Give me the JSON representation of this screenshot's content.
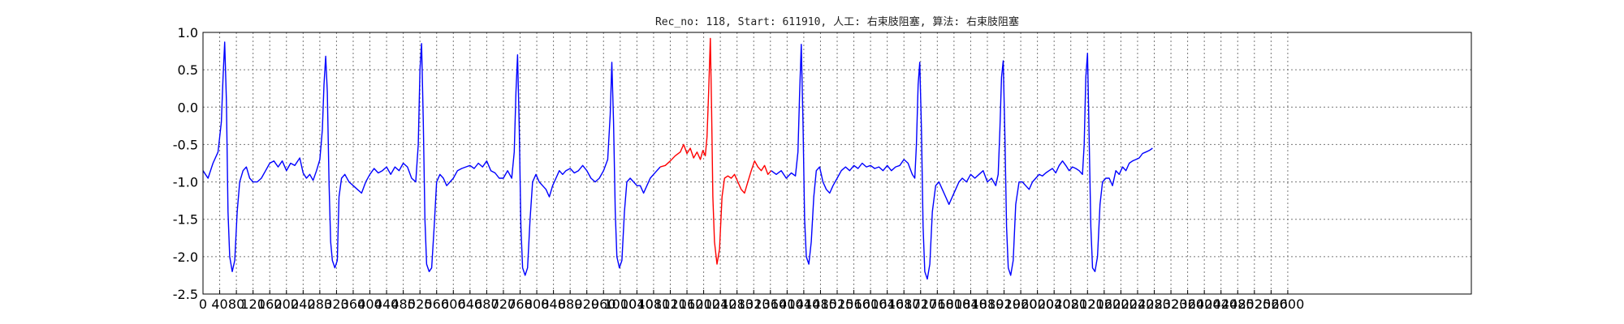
{
  "chart_data": {
    "type": "line",
    "title": "Rec_no: 118, Start: 611910, 人工: 右束肢阻塞, 算法: 右束肢阻塞",
    "xlabel": "",
    "ylabel": "",
    "xlim": [
      0,
      3040
    ],
    "ylim": [
      -2.5,
      1.0
    ],
    "grid": true,
    "yticks": [
      "1.0",
      "0.5",
      "0.0",
      "-0.5",
      "-1.0",
      "-1.5",
      "-2.0",
      "-2.5"
    ],
    "xticks": [
      "0",
      "40",
      "80",
      "120",
      "160",
      "200",
      "240",
      "280",
      "320",
      "360",
      "400",
      "440",
      "480",
      "520",
      "560",
      "600",
      "640",
      "680",
      "720",
      "760",
      "800",
      "840",
      "880",
      "920",
      "960",
      "1000",
      "1040",
      "1080",
      "1120",
      "1160",
      "1200",
      "1240",
      "1280",
      "1320",
      "1360",
      "1400",
      "1440",
      "1480",
      "1520",
      "1560",
      "1600",
      "1640",
      "1680",
      "1720",
      "1760",
      "1800",
      "1840",
      "1880",
      "1920",
      "1960",
      "2000",
      "2040",
      "2080",
      "2120",
      "2160",
      "2200",
      "2240",
      "2280",
      "2320",
      "2360",
      "2400",
      "2440",
      "2480",
      "2520",
      "2560",
      "2600"
    ],
    "series": [
      {
        "color": "#0000ff",
        "points": [
          [
            0,
            -0.85
          ],
          [
            12,
            -0.95
          ],
          [
            24,
            -0.75
          ],
          [
            36,
            -0.6
          ],
          [
            44,
            -0.2
          ],
          [
            48,
            0.4
          ],
          [
            52,
            0.87
          ],
          [
            56,
            0.1
          ],
          [
            60,
            -1.4
          ],
          [
            64,
            -2.0
          ],
          [
            70,
            -2.2
          ],
          [
            76,
            -2.05
          ],
          [
            82,
            -1.4
          ],
          [
            88,
            -1.0
          ],
          [
            96,
            -0.85
          ],
          [
            104,
            -0.8
          ],
          [
            112,
            -0.95
          ],
          [
            120,
            -1.0
          ],
          [
            130,
            -1.0
          ],
          [
            140,
            -0.95
          ],
          [
            150,
            -0.85
          ],
          [
            160,
            -0.75
          ],
          [
            170,
            -0.72
          ],
          [
            180,
            -0.8
          ],
          [
            190,
            -0.72
          ],
          [
            200,
            -0.85
          ],
          [
            210,
            -0.75
          ],
          [
            220,
            -0.78
          ],
          [
            232,
            -0.68
          ],
          [
            240,
            -0.88
          ],
          [
            248,
            -0.95
          ],
          [
            256,
            -0.9
          ],
          [
            264,
            -0.98
          ],
          [
            272,
            -0.85
          ],
          [
            280,
            -0.7
          ],
          [
            286,
            -0.3
          ],
          [
            290,
            0.3
          ],
          [
            294,
            0.68
          ],
          [
            298,
            0.2
          ],
          [
            302,
            -1.0
          ],
          [
            306,
            -1.8
          ],
          [
            310,
            -2.05
          ],
          [
            316,
            -2.15
          ],
          [
            322,
            -2.05
          ],
          [
            326,
            -1.2
          ],
          [
            332,
            -0.95
          ],
          [
            340,
            -0.9
          ],
          [
            350,
            -1.0
          ],
          [
            360,
            -1.05
          ],
          [
            370,
            -1.1
          ],
          [
            380,
            -1.15
          ],
          [
            390,
            -1.0
          ],
          [
            400,
            -0.9
          ],
          [
            410,
            -0.82
          ],
          [
            420,
            -0.88
          ],
          [
            430,
            -0.85
          ],
          [
            440,
            -0.8
          ],
          [
            450,
            -0.9
          ],
          [
            460,
            -0.8
          ],
          [
            470,
            -0.85
          ],
          [
            480,
            -0.75
          ],
          [
            490,
            -0.8
          ],
          [
            500,
            -0.95
          ],
          [
            510,
            -1.0
          ],
          [
            516,
            -0.5
          ],
          [
            520,
            0.5
          ],
          [
            524,
            0.85
          ],
          [
            528,
            -0.2
          ],
          [
            532,
            -1.5
          ],
          [
            536,
            -2.1
          ],
          [
            542,
            -2.2
          ],
          [
            548,
            -2.15
          ],
          [
            554,
            -1.6
          ],
          [
            560,
            -1.0
          ],
          [
            568,
            -0.9
          ],
          [
            576,
            -0.95
          ],
          [
            584,
            -1.05
          ],
          [
            592,
            -1.0
          ],
          [
            600,
            -0.95
          ],
          [
            610,
            -0.85
          ],
          [
            620,
            -0.82
          ],
          [
            630,
            -0.8
          ],
          [
            640,
            -0.78
          ],
          [
            650,
            -0.82
          ],
          [
            660,
            -0.75
          ],
          [
            670,
            -0.8
          ],
          [
            680,
            -0.72
          ],
          [
            690,
            -0.85
          ],
          [
            700,
            -0.88
          ],
          [
            710,
            -0.95
          ],
          [
            720,
            -0.95
          ],
          [
            730,
            -0.85
          ],
          [
            740,
            -0.95
          ],
          [
            746,
            -0.6
          ],
          [
            750,
            0.2
          ],
          [
            754,
            0.7
          ],
          [
            758,
            -0.3
          ],
          [
            762,
            -1.6
          ],
          [
            766,
            -2.15
          ],
          [
            772,
            -2.25
          ],
          [
            778,
            -2.15
          ],
          [
            784,
            -1.5
          ],
          [
            790,
            -1.0
          ],
          [
            798,
            -0.9
          ],
          [
            806,
            -1.0
          ],
          [
            814,
            -1.05
          ],
          [
            822,
            -1.1
          ],
          [
            830,
            -1.2
          ],
          [
            838,
            -1.05
          ],
          [
            846,
            -0.95
          ],
          [
            854,
            -0.85
          ],
          [
            862,
            -0.9
          ],
          [
            870,
            -0.85
          ],
          [
            880,
            -0.82
          ],
          [
            890,
            -0.88
          ],
          [
            900,
            -0.85
          ],
          [
            910,
            -0.78
          ],
          [
            920,
            -0.85
          ],
          [
            930,
            -0.95
          ],
          [
            940,
            -1.0
          ],
          [
            950,
            -0.95
          ],
          [
            960,
            -0.85
          ],
          [
            970,
            -0.7
          ],
          [
            976,
            -0.1
          ],
          [
            980,
            0.6
          ],
          [
            984,
            -0.2
          ],
          [
            988,
            -1.4
          ],
          [
            992,
            -2.0
          ],
          [
            998,
            -2.15
          ],
          [
            1004,
            -2.05
          ],
          [
            1010,
            -1.4
          ],
          [
            1016,
            -1.0
          ],
          [
            1024,
            -0.95
          ],
          [
            1032,
            -1.0
          ],
          [
            1040,
            -1.05
          ],
          [
            1048,
            -1.05
          ],
          [
            1056,
            -1.15
          ],
          [
            1064,
            -1.05
          ],
          [
            1072,
            -0.95
          ],
          [
            1080,
            -0.9
          ],
          [
            1088,
            -0.85
          ],
          [
            1096,
            -0.8
          ]
        ]
      },
      {
        "color": "#ff0000",
        "points": [
          [
            1096,
            -0.8
          ],
          [
            1108,
            -0.78
          ],
          [
            1120,
            -0.72
          ],
          [
            1132,
            -0.65
          ],
          [
            1144,
            -0.6
          ],
          [
            1152,
            -0.5
          ],
          [
            1160,
            -0.62
          ],
          [
            1168,
            -0.55
          ],
          [
            1176,
            -0.68
          ],
          [
            1184,
            -0.6
          ],
          [
            1192,
            -0.7
          ],
          [
            1198,
            -0.58
          ],
          [
            1204,
            -0.65
          ],
          [
            1208,
            -0.4
          ],
          [
            1212,
            0.2
          ],
          [
            1216,
            0.92
          ],
          [
            1219,
            0.0
          ],
          [
            1222,
            -1.2
          ],
          [
            1226,
            -1.8
          ],
          [
            1232,
            -2.1
          ],
          [
            1238,
            -1.9
          ],
          [
            1244,
            -1.2
          ],
          [
            1250,
            -0.95
          ],
          [
            1258,
            -0.92
          ],
          [
            1266,
            -0.95
          ],
          [
            1274,
            -0.9
          ],
          [
            1282,
            -1.0
          ],
          [
            1290,
            -1.1
          ],
          [
            1298,
            -1.15
          ],
          [
            1306,
            -1.0
          ],
          [
            1314,
            -0.85
          ],
          [
            1322,
            -0.72
          ],
          [
            1330,
            -0.8
          ],
          [
            1338,
            -0.85
          ],
          [
            1346,
            -0.78
          ],
          [
            1354,
            -0.9
          ],
          [
            1362,
            -0.85
          ]
        ]
      },
      {
        "color": "#0000ff",
        "points": [
          [
            1362,
            -0.85
          ],
          [
            1374,
            -0.9
          ],
          [
            1386,
            -0.85
          ],
          [
            1398,
            -0.95
          ],
          [
            1410,
            -0.88
          ],
          [
            1420,
            -0.92
          ],
          [
            1426,
            -0.6
          ],
          [
            1430,
            0.2
          ],
          [
            1434,
            0.84
          ],
          [
            1438,
            -0.2
          ],
          [
            1442,
            -1.5
          ],
          [
            1446,
            -2.0
          ],
          [
            1452,
            -2.1
          ],
          [
            1458,
            -1.8
          ],
          [
            1464,
            -1.2
          ],
          [
            1470,
            -0.85
          ],
          [
            1478,
            -0.8
          ],
          [
            1486,
            -1.0
          ],
          [
            1494,
            -1.1
          ],
          [
            1502,
            -1.15
          ],
          [
            1510,
            -1.05
          ],
          [
            1520,
            -0.95
          ],
          [
            1530,
            -0.85
          ],
          [
            1540,
            -0.8
          ],
          [
            1550,
            -0.85
          ],
          [
            1560,
            -0.78
          ],
          [
            1570,
            -0.82
          ],
          [
            1580,
            -0.75
          ],
          [
            1590,
            -0.8
          ],
          [
            1600,
            -0.78
          ],
          [
            1610,
            -0.82
          ],
          [
            1620,
            -0.8
          ],
          [
            1630,
            -0.85
          ],
          [
            1640,
            -0.78
          ],
          [
            1650,
            -0.85
          ],
          [
            1660,
            -0.8
          ],
          [
            1670,
            -0.78
          ],
          [
            1680,
            -0.7
          ],
          [
            1690,
            -0.75
          ],
          [
            1700,
            -0.9
          ],
          [
            1706,
            -0.95
          ],
          [
            1710,
            -0.5
          ],
          [
            1714,
            0.3
          ],
          [
            1718,
            0.6
          ],
          [
            1722,
            -0.3
          ],
          [
            1726,
            -1.6
          ],
          [
            1730,
            -2.2
          ],
          [
            1736,
            -2.3
          ],
          [
            1742,
            -2.1
          ],
          [
            1748,
            -1.4
          ],
          [
            1756,
            -1.05
          ],
          [
            1764,
            -1.0
          ],
          [
            1772,
            -1.1
          ],
          [
            1780,
            -1.2
          ],
          [
            1788,
            -1.3
          ],
          [
            1796,
            -1.2
          ],
          [
            1804,
            -1.1
          ],
          [
            1812,
            -1.0
          ],
          [
            1820,
            -0.95
          ],
          [
            1830,
            -1.0
          ],
          [
            1840,
            -0.9
          ],
          [
            1850,
            -0.95
          ],
          [
            1860,
            -0.9
          ],
          [
            1870,
            -0.85
          ],
          [
            1880,
            -1.0
          ],
          [
            1890,
            -0.95
          ],
          [
            1900,
            -1.05
          ],
          [
            1906,
            -0.9
          ],
          [
            1910,
            -0.3
          ],
          [
            1914,
            0.4
          ],
          [
            1918,
            0.62
          ],
          [
            1922,
            -0.4
          ],
          [
            1926,
            -1.6
          ],
          [
            1930,
            -2.15
          ],
          [
            1936,
            -2.25
          ],
          [
            1942,
            -2.05
          ],
          [
            1948,
            -1.3
          ],
          [
            1956,
            -1.0
          ],
          [
            1964,
            -1.0
          ],
          [
            1972,
            -1.05
          ],
          [
            1980,
            -1.1
          ],
          [
            1988,
            -1.0
          ],
          [
            1996,
            -0.95
          ],
          [
            2004,
            -0.9
          ],
          [
            2012,
            -0.92
          ],
          [
            2020,
            -0.88
          ],
          [
            2028,
            -0.85
          ],
          [
            2036,
            -0.82
          ],
          [
            2044,
            -0.88
          ],
          [
            2052,
            -0.78
          ],
          [
            2060,
            -0.72
          ],
          [
            2068,
            -0.78
          ],
          [
            2076,
            -0.85
          ],
          [
            2084,
            -0.8
          ],
          [
            2092,
            -0.82
          ],
          [
            2100,
            -0.85
          ],
          [
            2108,
            -0.9
          ],
          [
            2112,
            -0.5
          ],
          [
            2116,
            0.4
          ],
          [
            2120,
            0.72
          ],
          [
            2124,
            -0.4
          ],
          [
            2128,
            -1.6
          ],
          [
            2132,
            -2.15
          ],
          [
            2138,
            -2.2
          ],
          [
            2144,
            -2.0
          ],
          [
            2150,
            -1.3
          ],
          [
            2156,
            -1.0
          ],
          [
            2164,
            -0.95
          ],
          [
            2172,
            -0.95
          ],
          [
            2180,
            -1.05
          ],
          [
            2188,
            -0.85
          ],
          [
            2196,
            -0.9
          ],
          [
            2204,
            -0.8
          ],
          [
            2212,
            -0.85
          ],
          [
            2220,
            -0.75
          ],
          [
            2228,
            -0.72
          ],
          [
            2236,
            -0.7
          ],
          [
            2244,
            -0.68
          ],
          [
            2252,
            -0.62
          ],
          [
            2260,
            -0.6
          ],
          [
            2268,
            -0.58
          ],
          [
            2276,
            -0.55
          ]
        ]
      }
    ]
  }
}
